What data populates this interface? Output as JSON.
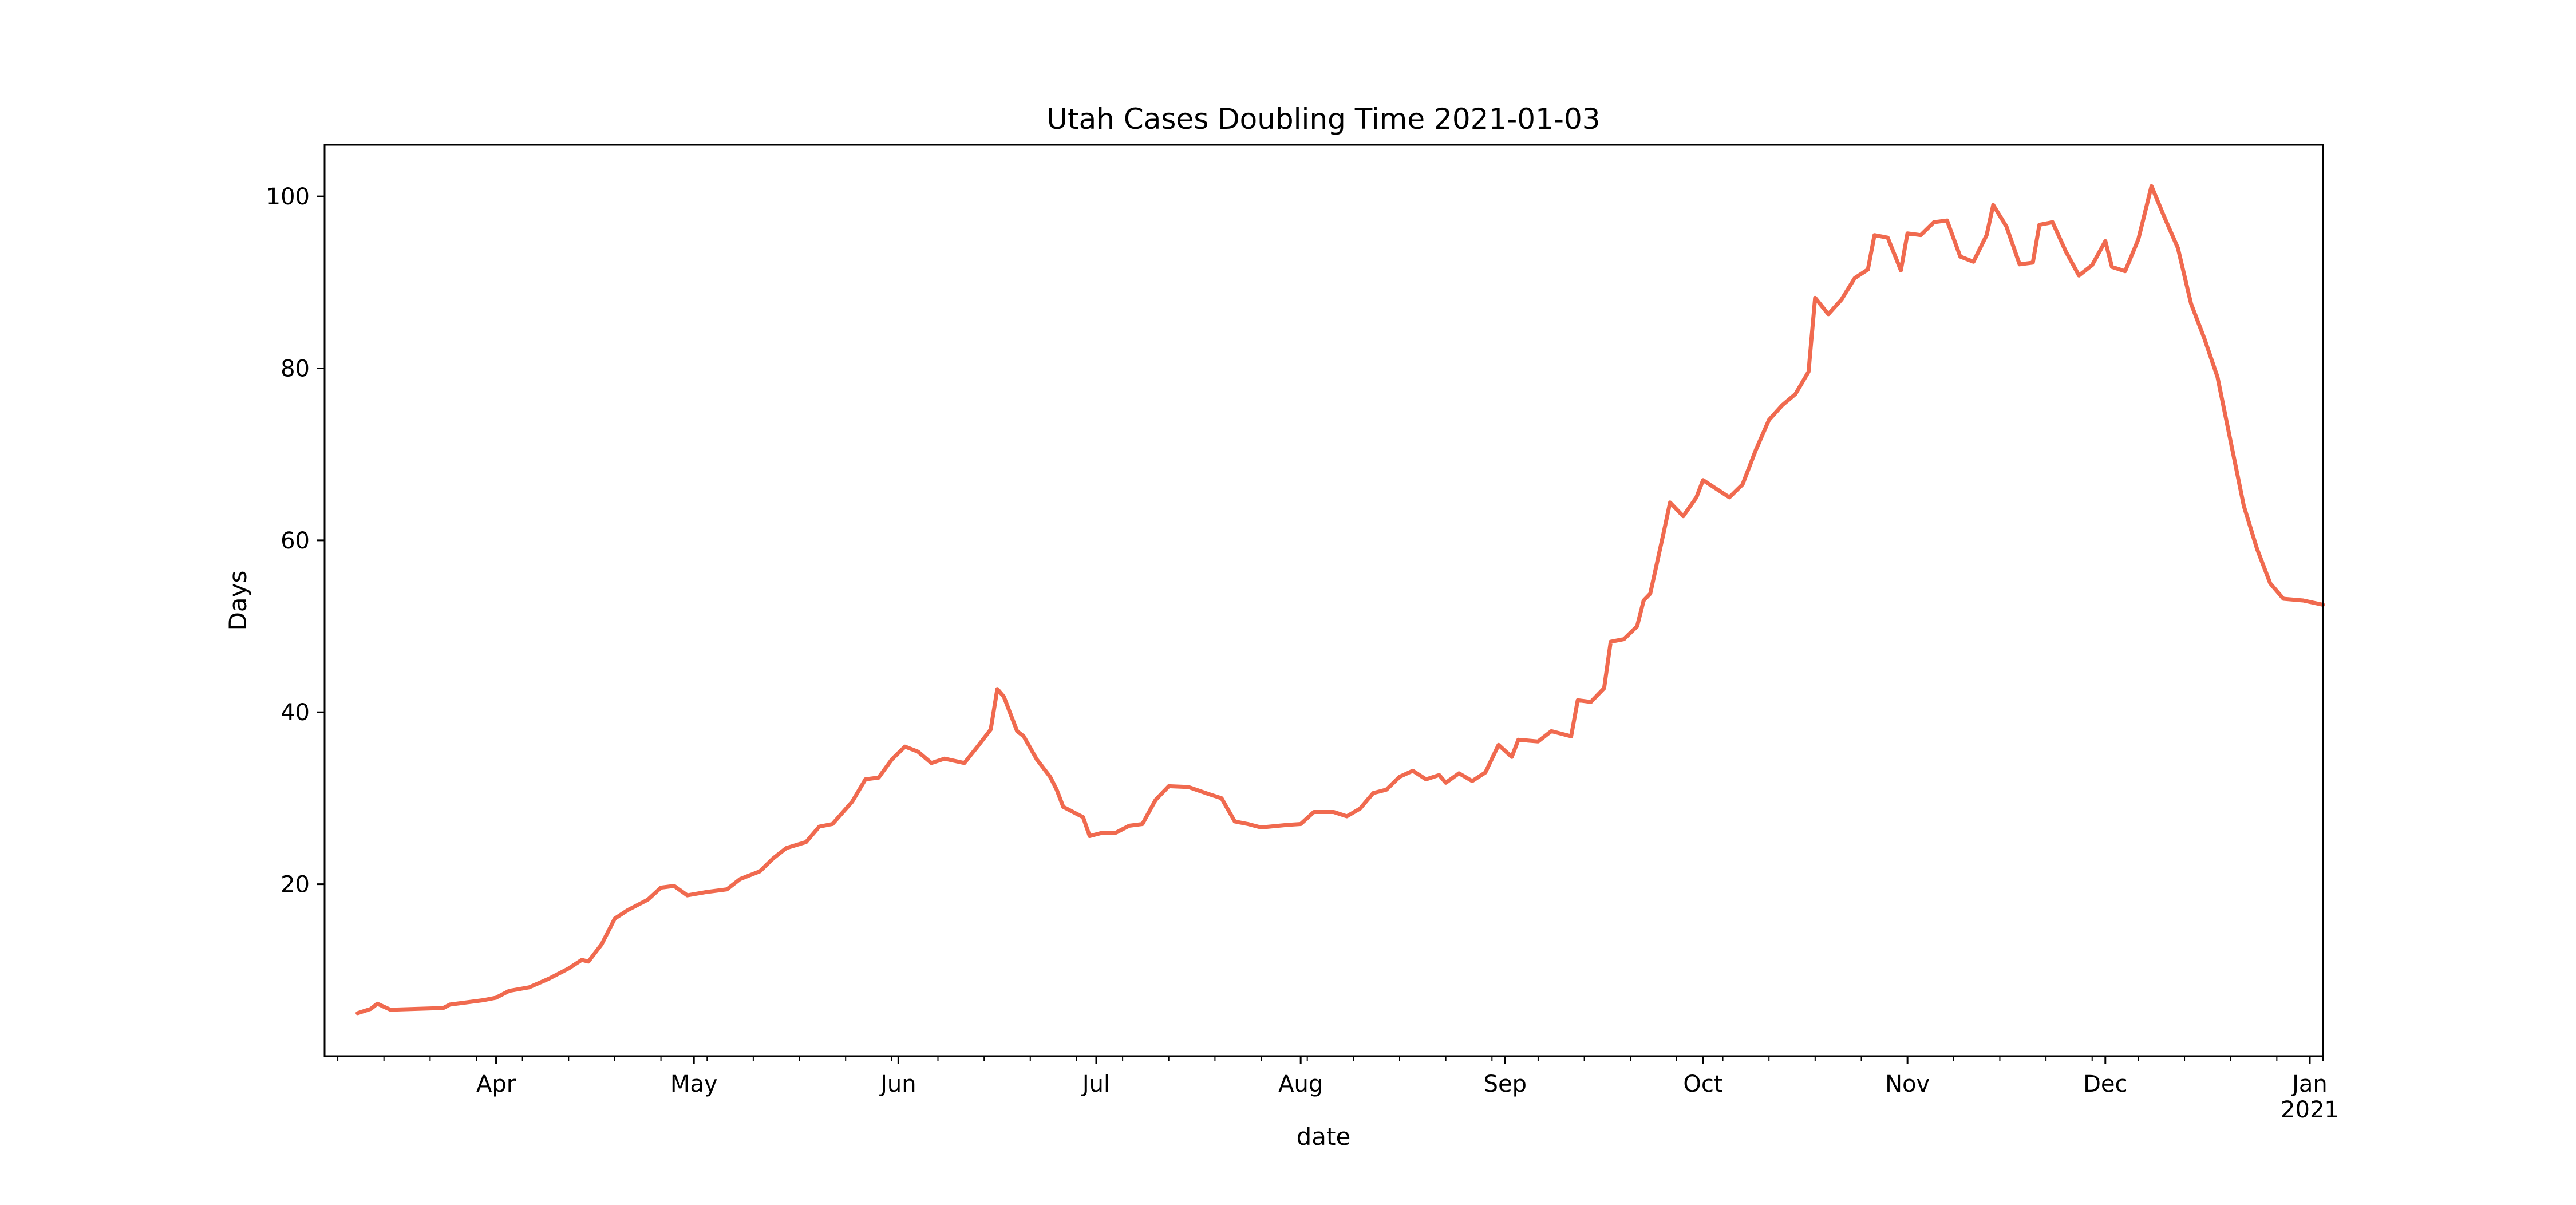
{
  "chart_data": {
    "type": "line",
    "title": "Utah Cases Doubling Time 2021-01-03",
    "xlabel": "date",
    "ylabel": "Days",
    "x_ticks": [
      {
        "date": "2020-04-01",
        "label": "Apr",
        "sublabel": ""
      },
      {
        "date": "2020-05-01",
        "label": "May",
        "sublabel": ""
      },
      {
        "date": "2020-06-01",
        "label": "Jun",
        "sublabel": ""
      },
      {
        "date": "2020-07-01",
        "label": "Jul",
        "sublabel": ""
      },
      {
        "date": "2020-08-01",
        "label": "Aug",
        "sublabel": ""
      },
      {
        "date": "2020-09-01",
        "label": "Sep",
        "sublabel": ""
      },
      {
        "date": "2020-10-01",
        "label": "Oct",
        "sublabel": ""
      },
      {
        "date": "2020-11-01",
        "label": "Nov",
        "sublabel": ""
      },
      {
        "date": "2020-12-01",
        "label": "Dec",
        "sublabel": ""
      },
      {
        "date": "2021-01-01",
        "label": "Jan",
        "sublabel": "2021"
      }
    ],
    "y_ticks": [
      20,
      40,
      60,
      80,
      100
    ],
    "xlim": [
      "2020-03-06",
      "2021-01-03"
    ],
    "ylim": [
      0,
      106
    ],
    "grid": false,
    "legend": "none",
    "series": [
      {
        "color": "#f06a4f",
        "points": [
          [
            "2020-03-11",
            5.0
          ],
          [
            "2020-03-13",
            5.5
          ],
          [
            "2020-03-14",
            6.1
          ],
          [
            "2020-03-16",
            5.4
          ],
          [
            "2020-03-20",
            5.5
          ],
          [
            "2020-03-24",
            5.6
          ],
          [
            "2020-03-25",
            6.0
          ],
          [
            "2020-03-30",
            6.5
          ],
          [
            "2020-04-01",
            6.8
          ],
          [
            "2020-04-03",
            7.6
          ],
          [
            "2020-04-06",
            8.0
          ],
          [
            "2020-04-09",
            9.0
          ],
          [
            "2020-04-12",
            10.2
          ],
          [
            "2020-04-14",
            11.2
          ],
          [
            "2020-04-15",
            11.0
          ],
          [
            "2020-04-17",
            13.0
          ],
          [
            "2020-04-19",
            16.0
          ],
          [
            "2020-04-21",
            17.0
          ],
          [
            "2020-04-24",
            18.2
          ],
          [
            "2020-04-26",
            19.6
          ],
          [
            "2020-04-28",
            19.8
          ],
          [
            "2020-04-30",
            18.7
          ],
          [
            "2020-05-03",
            19.1
          ],
          [
            "2020-05-06",
            19.4
          ],
          [
            "2020-05-08",
            20.6
          ],
          [
            "2020-05-11",
            21.5
          ],
          [
            "2020-05-13",
            23.0
          ],
          [
            "2020-05-15",
            24.2
          ],
          [
            "2020-05-18",
            24.9
          ],
          [
            "2020-05-20",
            26.7
          ],
          [
            "2020-05-22",
            27.0
          ],
          [
            "2020-05-25",
            29.6
          ],
          [
            "2020-05-27",
            32.2
          ],
          [
            "2020-05-29",
            32.4
          ],
          [
            "2020-05-31",
            34.5
          ],
          [
            "2020-06-02",
            36.0
          ],
          [
            "2020-06-04",
            35.4
          ],
          [
            "2020-06-06",
            34.1
          ],
          [
            "2020-06-08",
            34.6
          ],
          [
            "2020-06-11",
            34.1
          ],
          [
            "2020-06-13",
            36.0
          ],
          [
            "2020-06-15",
            38.0
          ],
          [
            "2020-06-16",
            42.7
          ],
          [
            "2020-06-17",
            41.8
          ],
          [
            "2020-06-19",
            37.8
          ],
          [
            "2020-06-20",
            37.2
          ],
          [
            "2020-06-22",
            34.5
          ],
          [
            "2020-06-24",
            32.5
          ],
          [
            "2020-06-25",
            31.0
          ],
          [
            "2020-06-26",
            29.0
          ],
          [
            "2020-06-28",
            28.2
          ],
          [
            "2020-06-29",
            27.8
          ],
          [
            "2020-06-30",
            25.6
          ],
          [
            "2020-07-02",
            26.0
          ],
          [
            "2020-07-04",
            26.0
          ],
          [
            "2020-07-06",
            26.8
          ],
          [
            "2020-07-08",
            27.0
          ],
          [
            "2020-07-10",
            29.8
          ],
          [
            "2020-07-12",
            31.4
          ],
          [
            "2020-07-15",
            31.3
          ],
          [
            "2020-07-18",
            30.5
          ],
          [
            "2020-07-20",
            30.0
          ],
          [
            "2020-07-22",
            27.3
          ],
          [
            "2020-07-24",
            27.0
          ],
          [
            "2020-07-26",
            26.6
          ],
          [
            "2020-07-30",
            26.9
          ],
          [
            "2020-08-01",
            27.0
          ],
          [
            "2020-08-03",
            28.4
          ],
          [
            "2020-08-06",
            28.4
          ],
          [
            "2020-08-08",
            27.9
          ],
          [
            "2020-08-10",
            28.8
          ],
          [
            "2020-08-12",
            30.6
          ],
          [
            "2020-08-14",
            31.0
          ],
          [
            "2020-08-16",
            32.5
          ],
          [
            "2020-08-18",
            33.2
          ],
          [
            "2020-08-20",
            32.2
          ],
          [
            "2020-08-22",
            32.7
          ],
          [
            "2020-08-23",
            31.8
          ],
          [
            "2020-08-25",
            32.9
          ],
          [
            "2020-08-27",
            32.0
          ],
          [
            "2020-08-29",
            33.0
          ],
          [
            "2020-08-31",
            36.2
          ],
          [
            "2020-09-02",
            34.8
          ],
          [
            "2020-09-03",
            36.8
          ],
          [
            "2020-09-06",
            36.6
          ],
          [
            "2020-09-08",
            37.8
          ],
          [
            "2020-09-11",
            37.2
          ],
          [
            "2020-09-12",
            41.4
          ],
          [
            "2020-09-14",
            41.2
          ],
          [
            "2020-09-16",
            42.8
          ],
          [
            "2020-09-17",
            48.2
          ],
          [
            "2020-09-19",
            48.5
          ],
          [
            "2020-09-21",
            50.0
          ],
          [
            "2020-09-22",
            53.0
          ],
          [
            "2020-09-23",
            53.8
          ],
          [
            "2020-09-25",
            60.8
          ],
          [
            "2020-09-26",
            64.4
          ],
          [
            "2020-09-28",
            62.8
          ],
          [
            "2020-09-30",
            65.0
          ],
          [
            "2020-10-01",
            67.0
          ],
          [
            "2020-10-03",
            66.0
          ],
          [
            "2020-10-05",
            65.0
          ],
          [
            "2020-10-07",
            66.5
          ],
          [
            "2020-10-09",
            70.5
          ],
          [
            "2020-10-11",
            74.0
          ],
          [
            "2020-10-13",
            75.7
          ],
          [
            "2020-10-15",
            77.0
          ],
          [
            "2020-10-17",
            79.6
          ],
          [
            "2020-10-18",
            88.2
          ],
          [
            "2020-10-20",
            86.3
          ],
          [
            "2020-10-22",
            88.0
          ],
          [
            "2020-10-24",
            90.5
          ],
          [
            "2020-10-26",
            91.5
          ],
          [
            "2020-10-27",
            95.5
          ],
          [
            "2020-10-29",
            95.2
          ],
          [
            "2020-10-31",
            91.4
          ],
          [
            "2020-11-01",
            95.7
          ],
          [
            "2020-11-03",
            95.5
          ],
          [
            "2020-11-05",
            97.0
          ],
          [
            "2020-11-07",
            97.2
          ],
          [
            "2020-11-09",
            93.0
          ],
          [
            "2020-11-11",
            92.4
          ],
          [
            "2020-11-13",
            95.5
          ],
          [
            "2020-11-14",
            99.0
          ],
          [
            "2020-11-16",
            96.5
          ],
          [
            "2020-11-18",
            92.1
          ],
          [
            "2020-11-20",
            92.3
          ],
          [
            "2020-11-21",
            96.7
          ],
          [
            "2020-11-23",
            97.0
          ],
          [
            "2020-11-25",
            93.6
          ],
          [
            "2020-11-27",
            90.8
          ],
          [
            "2020-11-29",
            92.0
          ],
          [
            "2020-12-01",
            94.8
          ],
          [
            "2020-12-02",
            91.8
          ],
          [
            "2020-12-04",
            91.3
          ],
          [
            "2020-12-06",
            95.0
          ],
          [
            "2020-12-08",
            101.2
          ],
          [
            "2020-12-10",
            97.5
          ],
          [
            "2020-12-12",
            94.0
          ],
          [
            "2020-12-14",
            87.5
          ],
          [
            "2020-12-16",
            83.5
          ],
          [
            "2020-12-18",
            79.0
          ],
          [
            "2020-12-20",
            71.5
          ],
          [
            "2020-12-22",
            64.0
          ],
          [
            "2020-12-24",
            59.0
          ],
          [
            "2020-12-26",
            55.0
          ],
          [
            "2020-12-28",
            53.2
          ],
          [
            "2020-12-31",
            53.0
          ],
          [
            "2021-01-03",
            52.5
          ]
        ]
      }
    ]
  }
}
